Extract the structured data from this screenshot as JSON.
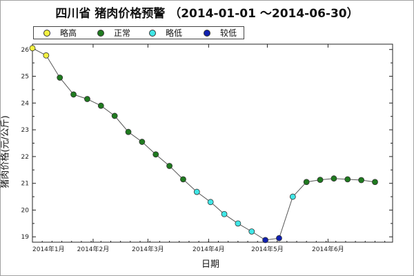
{
  "title": "四川省 猪肉价格预警 （2014-01-01 ～2014-06-30）",
  "legend": [
    {
      "label": "略高",
      "color": "#f2f040"
    },
    {
      "label": "正常",
      "color": "#1f7a1f"
    },
    {
      "label": "略低",
      "color": "#40e6e6"
    },
    {
      "label": "较低",
      "color": "#1020b0"
    }
  ],
  "chart_data": {
    "type": "scatter",
    "title": "四川省 猪肉价格预警 （2014-01-01 ～2014-06-30）",
    "xlabel": "日期",
    "ylabel": "猪肉价格(元/公斤)",
    "ylim": [
      18.8,
      26.2
    ],
    "y_ticks": [
      19,
      20,
      21,
      22,
      23,
      24,
      25,
      26
    ],
    "x_ticks": [
      "2014年1月",
      "2014年2月",
      "2014年3月",
      "2014年4月",
      "2014年5月",
      "2014年6月"
    ],
    "x_range": [
      "2014-01-01",
      "2014-07-04"
    ],
    "grid": false,
    "line_color": "#555555",
    "points": [
      {
        "date": "2014-01-01",
        "value": 26.05,
        "level": "略高"
      },
      {
        "date": "2014-01-08",
        "value": 25.78,
        "level": "略高"
      },
      {
        "date": "2014-01-15",
        "value": 24.95,
        "level": "正常"
      },
      {
        "date": "2014-01-22",
        "value": 24.32,
        "level": "正常"
      },
      {
        "date": "2014-01-29",
        "value": 24.15,
        "level": "正常"
      },
      {
        "date": "2014-02-05",
        "value": 23.9,
        "level": "正常"
      },
      {
        "date": "2014-02-12",
        "value": 23.52,
        "level": "正常"
      },
      {
        "date": "2014-02-19",
        "value": 22.92,
        "level": "正常"
      },
      {
        "date": "2014-02-26",
        "value": 22.55,
        "level": "正常"
      },
      {
        "date": "2014-03-05",
        "value": 22.08,
        "level": "正常"
      },
      {
        "date": "2014-03-12",
        "value": 21.65,
        "level": "正常"
      },
      {
        "date": "2014-03-19",
        "value": 21.15,
        "level": "正常"
      },
      {
        "date": "2014-03-26",
        "value": 20.68,
        "level": "略低"
      },
      {
        "date": "2014-04-02",
        "value": 20.3,
        "level": "略低"
      },
      {
        "date": "2014-04-09",
        "value": 19.85,
        "level": "略低"
      },
      {
        "date": "2014-04-16",
        "value": 19.5,
        "level": "略低"
      },
      {
        "date": "2014-04-23",
        "value": 19.2,
        "level": "略低"
      },
      {
        "date": "2014-04-30",
        "value": 18.88,
        "level": "较低"
      },
      {
        "date": "2014-05-07",
        "value": 18.95,
        "level": "较低"
      },
      {
        "date": "2014-05-14",
        "value": 20.5,
        "level": "略低"
      },
      {
        "date": "2014-05-21",
        "value": 21.05,
        "level": "正常"
      },
      {
        "date": "2014-05-28",
        "value": 21.13,
        "level": "正常"
      },
      {
        "date": "2014-06-04",
        "value": 21.18,
        "level": "正常"
      },
      {
        "date": "2014-06-11",
        "value": 21.15,
        "level": "正常"
      },
      {
        "date": "2014-06-18",
        "value": 21.12,
        "level": "正常"
      },
      {
        "date": "2014-06-25",
        "value": 21.05,
        "level": "正常"
      }
    ]
  }
}
